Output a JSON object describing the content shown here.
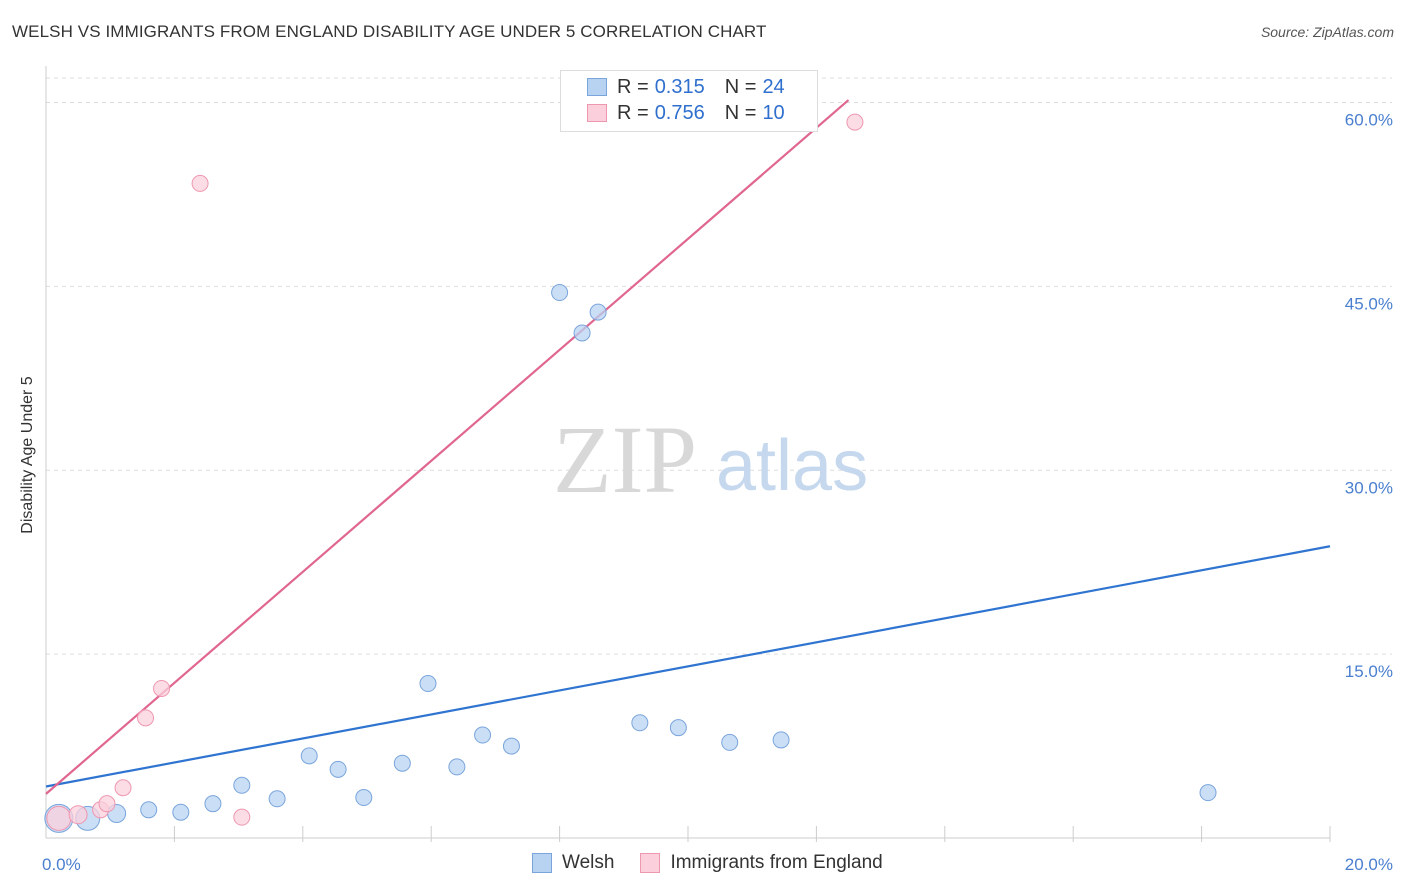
{
  "title": "WELSH VS IMMIGRANTS FROM ENGLAND DISABILITY AGE UNDER 5 CORRELATION CHART",
  "source": "Source: ZipAtlas.com",
  "colors": {
    "welsh_fill": "#b8d3f2",
    "welsh_stroke": "#7aa5dc",
    "welsh_line": "#2f74d0",
    "imm_fill": "#fbd0dc",
    "imm_stroke": "#ee98b0",
    "imm_line": "#e06690",
    "grid": "#dddddd",
    "axis_text": "#4a7fcf"
  },
  "legend": {
    "welsh": {
      "r_label": "R =",
      "r_value": "0.315",
      "n_label": "N =",
      "n_value": "24"
    },
    "imm": {
      "r_label": "R =",
      "r_value": "0.756",
      "n_label": "N =",
      "n_value": "10"
    }
  },
  "watermark": {
    "zip": "ZIP",
    "atlas": "atlas"
  },
  "chart_data": {
    "type": "scatter",
    "title": "WELSH VS IMMIGRANTS FROM ENGLAND DISABILITY AGE UNDER 5 CORRELATION CHART",
    "xlabel": "",
    "ylabel": "Disability Age Under 5",
    "xlim": [
      0,
      20
    ],
    "ylim": [
      0,
      62
    ],
    "x_tick_labels": [
      {
        "value": 0,
        "label": "0.0%"
      },
      {
        "value": 20,
        "label": "20.0%"
      }
    ],
    "y_tick_labels": [
      {
        "value": 15,
        "label": "15.0%"
      },
      {
        "value": 30,
        "label": "30.0%"
      },
      {
        "value": 45,
        "label": "45.0%"
      },
      {
        "value": 60,
        "label": "60.0%"
      }
    ],
    "x_minor_ticks": [
      2,
      4,
      6,
      8,
      10,
      12,
      14,
      16,
      18,
      20
    ],
    "series": [
      {
        "name": "Welsh",
        "points": [
          {
            "x": 0.2,
            "y": 1.6,
            "size": 14
          },
          {
            "x": 0.65,
            "y": 1.6,
            "size": 12
          },
          {
            "x": 1.1,
            "y": 2.0,
            "size": 9
          },
          {
            "x": 1.6,
            "y": 2.3,
            "size": 8
          },
          {
            "x": 2.1,
            "y": 2.1,
            "size": 8
          },
          {
            "x": 2.6,
            "y": 2.8,
            "size": 8
          },
          {
            "x": 3.05,
            "y": 4.3,
            "size": 8
          },
          {
            "x": 3.6,
            "y": 3.2,
            "size": 8
          },
          {
            "x": 4.1,
            "y": 6.7,
            "size": 8
          },
          {
            "x": 4.55,
            "y": 5.6,
            "size": 8
          },
          {
            "x": 4.95,
            "y": 3.3,
            "size": 8
          },
          {
            "x": 5.55,
            "y": 6.1,
            "size": 8
          },
          {
            "x": 5.95,
            "y": 12.6,
            "size": 8
          },
          {
            "x": 6.4,
            "y": 5.8,
            "size": 8
          },
          {
            "x": 6.8,
            "y": 8.4,
            "size": 8
          },
          {
            "x": 7.25,
            "y": 7.5,
            "size": 8
          },
          {
            "x": 8.0,
            "y": 44.5,
            "size": 8
          },
          {
            "x": 8.35,
            "y": 41.2,
            "size": 8
          },
          {
            "x": 8.6,
            "y": 42.9,
            "size": 8
          },
          {
            "x": 9.25,
            "y": 9.4,
            "size": 8
          },
          {
            "x": 9.85,
            "y": 9.0,
            "size": 8
          },
          {
            "x": 10.65,
            "y": 7.8,
            "size": 8
          },
          {
            "x": 11.45,
            "y": 8.0,
            "size": 8
          },
          {
            "x": 18.1,
            "y": 3.7,
            "size": 8
          }
        ]
      },
      {
        "name": "Immigrants from England",
        "points": [
          {
            "x": 0.2,
            "y": 1.6,
            "size": 12
          },
          {
            "x": 0.5,
            "y": 1.9,
            "size": 9
          },
          {
            "x": 0.85,
            "y": 2.3,
            "size": 8
          },
          {
            "x": 0.95,
            "y": 2.8,
            "size": 8
          },
          {
            "x": 1.2,
            "y": 4.1,
            "size": 8
          },
          {
            "x": 1.55,
            "y": 9.8,
            "size": 8
          },
          {
            "x": 1.8,
            "y": 12.2,
            "size": 8
          },
          {
            "x": 2.4,
            "y": 53.4,
            "size": 8
          },
          {
            "x": 3.05,
            "y": 1.7,
            "size": 8
          },
          {
            "x": 12.6,
            "y": 58.4,
            "size": 8
          }
        ]
      }
    ],
    "trend_lines": [
      {
        "series": "Welsh",
        "x1": 0,
        "y1": 4.2,
        "x2": 20,
        "y2": 23.8
      },
      {
        "series": "Immigrants from England",
        "x1": 0,
        "y1": 3.6,
        "x2": 12.5,
        "y2": 60.2
      }
    ],
    "legend": [
      "Welsh",
      "Immigrants from England"
    ]
  }
}
